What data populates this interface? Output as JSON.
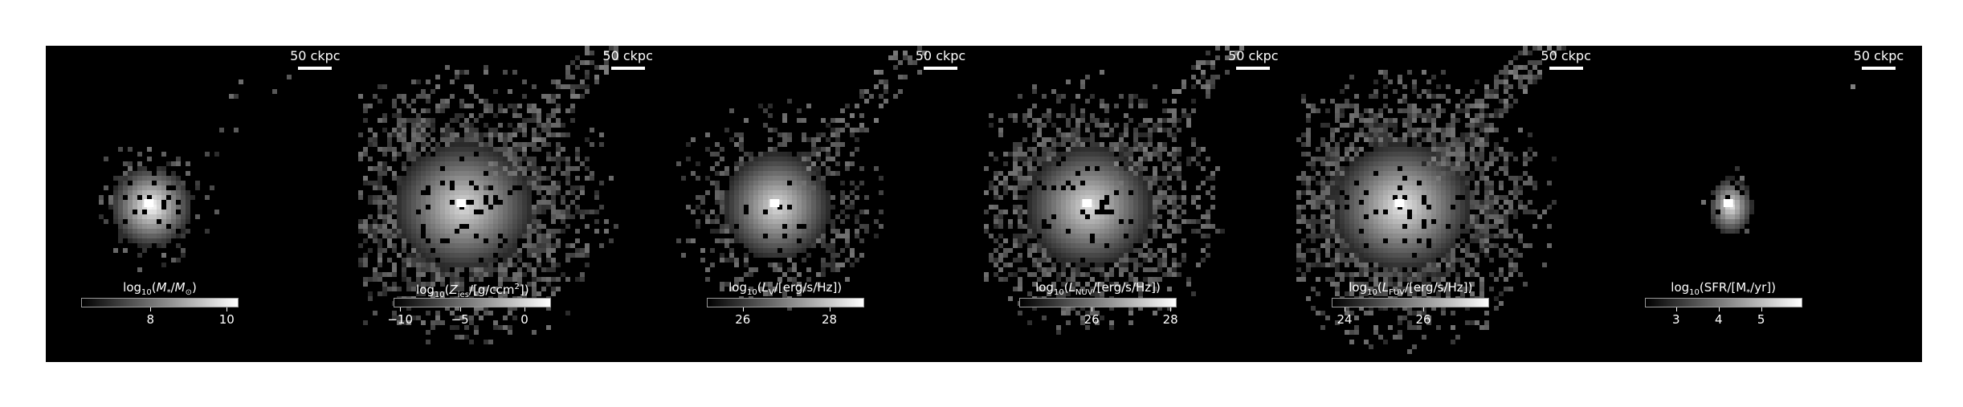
{
  "scalebar_label": "50 ckpc",
  "panels": [
    {
      "id": "stellar-mass",
      "label_html": "log<sub>10</sub>(<i>M</i><sub>*</sub>/<i>M</i><sub>⊙</sub>)",
      "ticks": [
        "8",
        "10"
      ],
      "tick_fracs": [
        0.44,
        0.925
      ]
    },
    {
      "id": "metallicity",
      "label_html": "log<sub>10</sub>(<i>Z</i><sub>ies</sub>/[g/ccm<sup>2</sup>])",
      "ticks": [
        "−10",
        "−5",
        "0"
      ],
      "tick_fracs": [
        0.04,
        0.42,
        0.83
      ]
    },
    {
      "id": "v-band",
      "label_html": "log<sub>10</sub>(<i>L</i><sub>V</sub>/[erg/s/Hz])",
      "ticks": [
        "26",
        "28"
      ],
      "tick_fracs": [
        0.23,
        0.78
      ]
    },
    {
      "id": "nuv",
      "label_html": "log<sub>10</sub>(<i>L</i><sub>NUV</sub>/[erg/s/Hz])",
      "ticks": [
        "26",
        "28"
      ],
      "tick_fracs": [
        0.46,
        0.96
      ]
    },
    {
      "id": "fuv",
      "label_html": "log<sub>10</sub>(<i>L</i><sub>FUV</sub>/[erg/s/Hz])",
      "ticks": [
        "24",
        "26"
      ],
      "tick_fracs": [
        0.08,
        0.58
      ]
    },
    {
      "id": "sfr",
      "label_html": "log<sub>10</sub>(SFR/[M<sub>*</sub>/yr])",
      "ticks": [
        "3",
        "4",
        "5"
      ],
      "tick_fracs": [
        0.2,
        0.47,
        0.74
      ]
    }
  ]
}
